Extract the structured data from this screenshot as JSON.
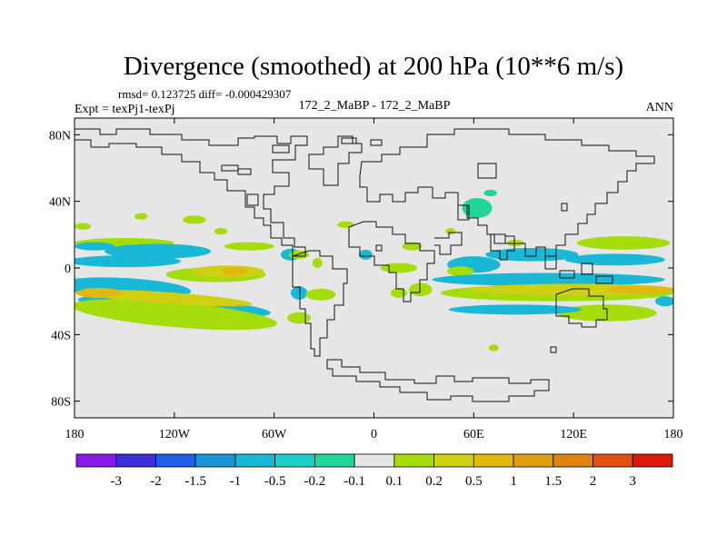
{
  "chart_data": {
    "type": "heatmap",
    "title": "Divergence (smoothed) at 200 hPa (10**6 m/s)",
    "stats_line": "rmsd= 0.123725 diff= -0.000429307",
    "left_label": "Expt = texPj1-texPj",
    "center_label": "172_2_MaBP - 172_2_MaBP",
    "right_label": "ANN",
    "x_axis": {
      "range": [
        -180,
        180
      ],
      "ticks": [
        {
          "value": -180,
          "label": "180"
        },
        {
          "value": -120,
          "label": "120W"
        },
        {
          "value": -60,
          "label": "60W"
        },
        {
          "value": 0,
          "label": "0"
        },
        {
          "value": 60,
          "label": "60E"
        },
        {
          "value": 120,
          "label": "120E"
        },
        {
          "value": 180,
          "label": "180"
        }
      ]
    },
    "y_axis": {
      "range": [
        -90,
        90
      ],
      "ticks": [
        {
          "value": 80,
          "label": "80N"
        },
        {
          "value": 40,
          "label": "40N"
        },
        {
          "value": 0,
          "label": "0"
        },
        {
          "value": -40,
          "label": "40S"
        },
        {
          "value": -80,
          "label": "80S"
        }
      ]
    },
    "colorbar": {
      "colors": [
        "#8b1ae6",
        "#3a2fd9",
        "#1f5fe6",
        "#1896d8",
        "#18b8d6",
        "#1ad0c8",
        "#22d69a",
        "#e6e6e6",
        "#a5dc0c",
        "#cfcf14",
        "#e0b810",
        "#e09e12",
        "#e0820e",
        "#e0500e",
        "#dc1a0c"
      ],
      "labels": [
        "-3",
        "-2",
        "-1.5",
        "-1",
        "-0.5",
        "-0.2",
        "-0.1",
        "0.1",
        "0.2",
        "0.5",
        "1",
        "1.5",
        "2",
        "3"
      ]
    },
    "background_color": "#e6e6e6",
    "contour_regions": [
      {
        "level": -0.2,
        "color": "#18b8d6",
        "lon": -150,
        "lat": -12,
        "dlon": 40,
        "dlat": 6,
        "rot": 3
      },
      {
        "level": 0.2,
        "color": "#a5dc0c",
        "lon": -150,
        "lat": 15,
        "dlon": 30,
        "dlat": 3
      },
      {
        "level": 0.2,
        "color": "#a5dc0c",
        "lon": -75,
        "lat": 13,
        "dlon": 15,
        "dlat": 2.5
      },
      {
        "level": -0.2,
        "color": "#18b8d6",
        "lon": -120,
        "lat": -23,
        "dlon": 58,
        "dlat": 5.5,
        "rot": 4
      },
      {
        "level": 0.2,
        "color": "#a5dc0c",
        "lon": -120,
        "lat": -28,
        "dlon": 62,
        "dlat": 7.5,
        "rot": 5
      },
      {
        "level": 0.5,
        "color": "#cfcf14",
        "lon": -125,
        "lat": -18,
        "dlon": 52,
        "dlat": 3.5,
        "rot": 4
      },
      {
        "level": 1,
        "color": "#e0b810",
        "lon": -165,
        "lat": -15,
        "dlon": 14,
        "dlat": 3
      },
      {
        "level": 0.2,
        "color": "#a5dc0c",
        "lon": -95,
        "lat": -4,
        "dlon": 30,
        "dlat": 4.5
      },
      {
        "level": 0.5,
        "color": "#cfcf14",
        "lon": -88,
        "lat": -2,
        "dlon": 22,
        "dlat": 3.5
      },
      {
        "level": 1,
        "color": "#e0b810",
        "lon": -84,
        "lat": -2,
        "dlon": 8,
        "dlat": 2.5
      },
      {
        "level": 0.2,
        "color": "#a5dc0c",
        "lon": -175,
        "lat": 25,
        "dlon": 5,
        "dlat": 2
      },
      {
        "level": 0.2,
        "color": "#a5dc0c",
        "lon": -140,
        "lat": 31,
        "dlon": 4,
        "dlat": 2
      },
      {
        "level": 0.2,
        "color": "#a5dc0c",
        "lon": -108,
        "lat": 29,
        "dlon": 7,
        "dlat": 2.5
      },
      {
        "level": 0.2,
        "color": "#a5dc0c",
        "lon": -92,
        "lat": 22,
        "dlon": 4,
        "dlat": 2
      },
      {
        "level": -0.2,
        "color": "#18b8d6",
        "lon": -168,
        "lat": 13,
        "dlon": 12,
        "dlat": 2.5
      },
      {
        "level": -0.2,
        "color": "#18b8d6",
        "lon": -130,
        "lat": 10,
        "dlon": 32,
        "dlat": 4.5
      },
      {
        "level": -0.2,
        "color": "#18b8d6",
        "lon": -150,
        "lat": 4,
        "dlon": 34,
        "dlat": 3.5
      },
      {
        "level": -0.2,
        "color": "#18b8d6",
        "lon": -50,
        "lat": 8,
        "dlon": 6,
        "dlat": 3.5
      },
      {
        "level": 0.2,
        "color": "#a5dc0c",
        "lon": -45,
        "lat": 8,
        "dlon": 6,
        "dlat": 2.5
      },
      {
        "level": -0.2,
        "color": "#18b8d6",
        "lon": -45,
        "lat": -15,
        "dlon": 5,
        "dlat": 4
      },
      {
        "level": 0.2,
        "color": "#a5dc0c",
        "lon": -32,
        "lat": -16,
        "dlon": 9,
        "dlat": 3.5
      },
      {
        "level": 0.2,
        "color": "#a5dc0c",
        "lon": -45,
        "lat": -30,
        "dlon": 7,
        "dlat": 3.5
      },
      {
        "level": 0.2,
        "color": "#a5dc0c",
        "lon": -34,
        "lat": 3,
        "dlon": 3,
        "dlat": 3
      },
      {
        "level": 0.2,
        "color": "#a5dc0c",
        "lon": -17,
        "lat": 26,
        "dlon": 5,
        "dlat": 2
      },
      {
        "level": -0.2,
        "color": "#18b8d6",
        "lon": -5,
        "lat": 8,
        "dlon": 4,
        "dlat": 3
      },
      {
        "level": 0.2,
        "color": "#a5dc0c",
        "lon": 15,
        "lat": 0,
        "dlon": 11,
        "dlat": 3
      },
      {
        "level": 0.2,
        "color": "#a5dc0c",
        "lon": 23,
        "lat": 13,
        "dlon": 6,
        "dlat": 2.5
      },
      {
        "level": 0.2,
        "color": "#a5dc0c",
        "lon": 28,
        "lat": -13,
        "dlon": 7,
        "dlat": 4
      },
      {
        "level": 0.2,
        "color": "#a5dc0c",
        "lon": 15,
        "lat": -15,
        "dlon": 5,
        "dlat": 3
      },
      {
        "level": 0.2,
        "color": "#a5dc0c",
        "lon": 46,
        "lat": 22,
        "dlon": 3,
        "dlat": 2
      },
      {
        "level": -0.2,
        "color": "#18b8d6",
        "lon": 60,
        "lat": 2,
        "dlon": 16,
        "dlat": 5
      },
      {
        "level": 0.2,
        "color": "#a5dc0c",
        "lon": 52,
        "lat": -2,
        "dlon": 8,
        "dlat": 3
      },
      {
        "level": -0.2,
        "color": "#18b8d6",
        "lon": 95,
        "lat": 8,
        "dlon": 28,
        "dlat": 4
      },
      {
        "level": 0.2,
        "color": "#a5dc0c",
        "lon": 150,
        "lat": 15,
        "dlon": 28,
        "dlat": 4
      },
      {
        "level": -0.2,
        "color": "#18b8d6",
        "lon": 145,
        "lat": 5,
        "dlon": 30,
        "dlat": 3.5
      },
      {
        "level": 0.2,
        "color": "#a5dc0c",
        "lon": 85,
        "lat": 15,
        "dlon": 5,
        "dlat": 2
      },
      {
        "level": 0.5,
        "color": "#cfcf14",
        "lon": 86,
        "lat": 15,
        "dlon": 3,
        "dlat": 1.5
      },
      {
        "level": -0.2,
        "color": "#18b8d6",
        "lon": 105,
        "lat": -7,
        "dlon": 70,
        "dlat": 4
      },
      {
        "level": 0.2,
        "color": "#a5dc0c",
        "lon": 110,
        "lat": -15,
        "dlon": 70,
        "dlat": 5
      },
      {
        "level": 0.5,
        "color": "#cfcf14",
        "lon": 120,
        "lat": -13,
        "dlon": 62,
        "dlat": 3.5
      },
      {
        "level": 1,
        "color": "#e0b810",
        "lon": 160,
        "lat": -13,
        "dlon": 20,
        "dlat": 2.5
      },
      {
        "level": 0.2,
        "color": "#a5dc0c",
        "lon": 140,
        "lat": -27,
        "dlon": 30,
        "dlat": 5
      },
      {
        "level": -0.2,
        "color": "#18b8d6",
        "lon": 85,
        "lat": -25,
        "dlon": 40,
        "dlat": 3
      },
      {
        "level": -0.2,
        "color": "#18b8d6",
        "lon": 175,
        "lat": -20,
        "dlon": 6,
        "dlat": 3
      },
      {
        "level": -0.1,
        "color": "#22d69a",
        "lon": 62,
        "lat": 36,
        "dlon": 9,
        "dlat": 6
      },
      {
        "level": -0.1,
        "color": "#22d69a",
        "lon": 70,
        "lat": 45,
        "dlon": 4,
        "dlat": 2
      },
      {
        "level": 0.2,
        "color": "#a5dc0c",
        "lon": 72,
        "lat": -48,
        "dlon": 3,
        "dlat": 2
      }
    ]
  }
}
